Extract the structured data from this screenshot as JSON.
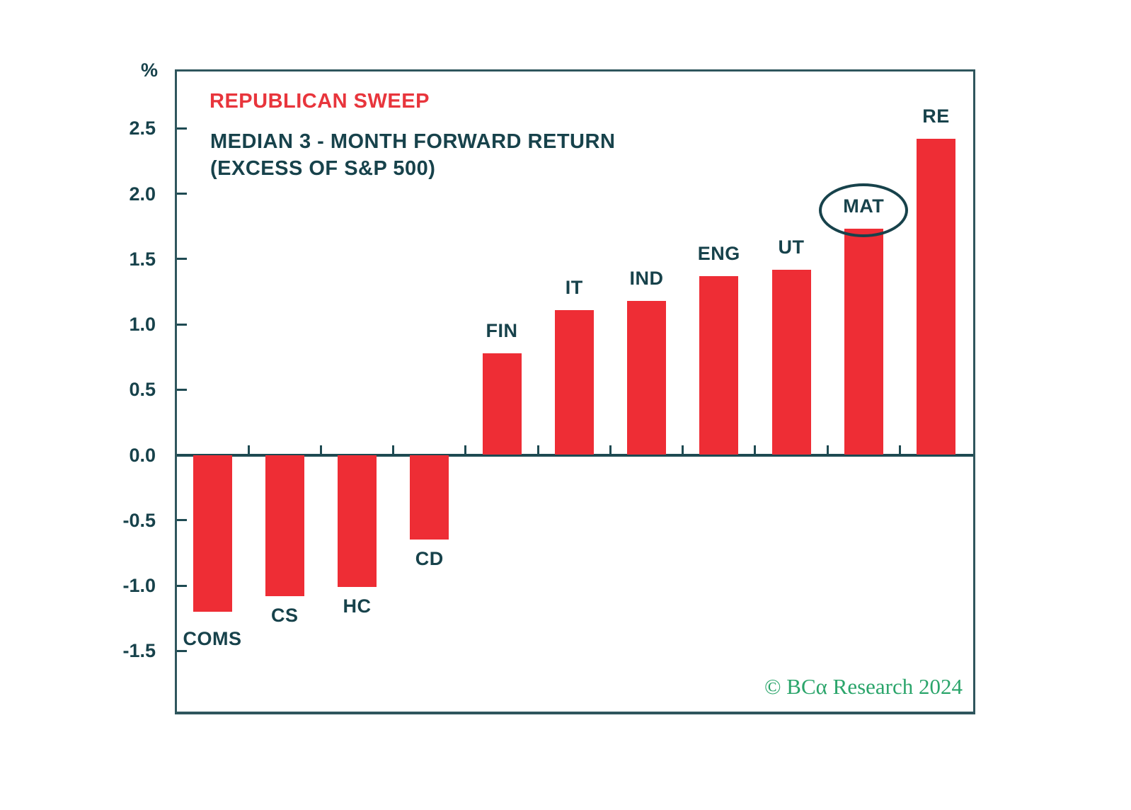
{
  "header": {
    "scenario_label": "REPUBLICAN SWEEP",
    "subtitle_line1": "MEDIAN 3 - MONTH FORWARD RETURN",
    "subtitle_line2": "(EXCESS OF S&P 500)"
  },
  "axis": {
    "unit_label": "%",
    "tick_values": [
      2.5,
      2.0,
      1.5,
      1.0,
      0.5,
      0.0,
      -0.5,
      -1.0,
      -1.5
    ],
    "tick_labels": [
      "2.5",
      "2.0",
      "1.5",
      "1.0",
      "0.5",
      "0.0",
      "-0.5",
      "-1.0",
      "-1.5"
    ]
  },
  "chart_data": {
    "type": "bar",
    "title": "REPUBLICAN SWEEP",
    "subtitle": "MEDIAN 3 - MONTH FORWARD RETURN (EXCESS OF S&P 500)",
    "ylabel": "%",
    "xlabel": "",
    "categories": [
      "COMS",
      "CS",
      "HC",
      "CD",
      "FIN",
      "IT",
      "IND",
      "ENG",
      "UT",
      "MAT",
      "RE"
    ],
    "values": [
      -1.2,
      -1.08,
      -1.01,
      -0.65,
      0.78,
      1.11,
      1.18,
      1.37,
      1.42,
      1.73,
      2.42
    ],
    "ylim": [
      -2.0,
      2.95
    ],
    "yticks": [
      2.5,
      2.0,
      1.5,
      1.0,
      0.5,
      0.0,
      -0.5,
      -1.0,
      -1.5
    ],
    "grid": false,
    "legend": "none",
    "bar_color": "#EE2D35",
    "text_color": "#17424B",
    "annotations": [
      {
        "type": "ellipse-circle",
        "target_category": "MAT",
        "meaning": "highlighted sector"
      }
    ]
  },
  "footer": {
    "credit": "© BCα Research 2024",
    "credit_color": "#2BA56B"
  }
}
